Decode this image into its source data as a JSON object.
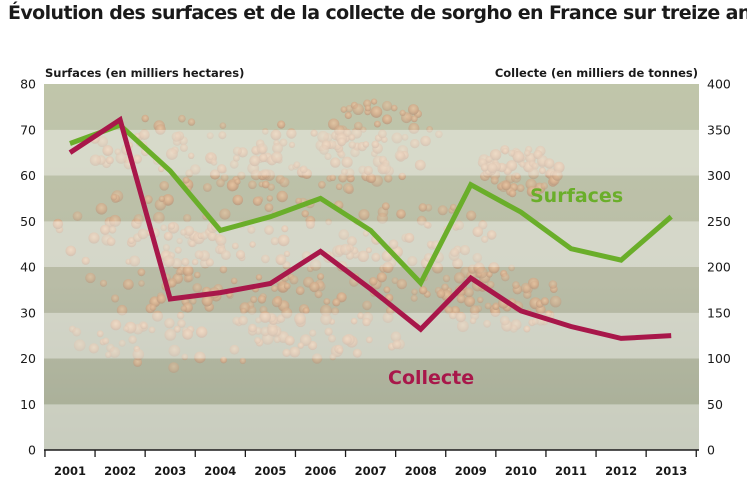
{
  "chart_data": {
    "type": "line",
    "title": "Évolution des surfaces et de la collecte de sorgho en France sur treize ans",
    "x": [
      "2001",
      "2002",
      "2003",
      "2004",
      "2005",
      "2006",
      "2007",
      "2008",
      "2009",
      "2010",
      "2011",
      "2012",
      "2013"
    ],
    "y_left": {
      "label": "Surfaces (en milliers hectares)",
      "range": [
        0,
        80
      ],
      "ticks": [
        0,
        10,
        20,
        30,
        40,
        50,
        60,
        70,
        80
      ]
    },
    "y_right": {
      "label": "Collecte (en milliers de tonnes)",
      "range": [
        0,
        400
      ],
      "ticks": [
        0,
        50,
        100,
        150,
        200,
        250,
        300,
        350,
        400
      ]
    },
    "series": [
      {
        "name": "Surfaces",
        "axis": "left",
        "color": "#6aae2a",
        "values": [
          67,
          71,
          61,
          48,
          51,
          55,
          48,
          36.5,
          58,
          52,
          44,
          41.5,
          51
        ]
      },
      {
        "name": "Collecte",
        "axis": "right",
        "color": "#a8174a",
        "values": [
          325,
          361,
          165,
          172,
          182,
          217,
          176,
          132,
          188,
          152,
          135,
          122,
          125
        ]
      }
    ],
    "grid": "alternating horizontal bands",
    "background": "photo of sorghum grains"
  }
}
